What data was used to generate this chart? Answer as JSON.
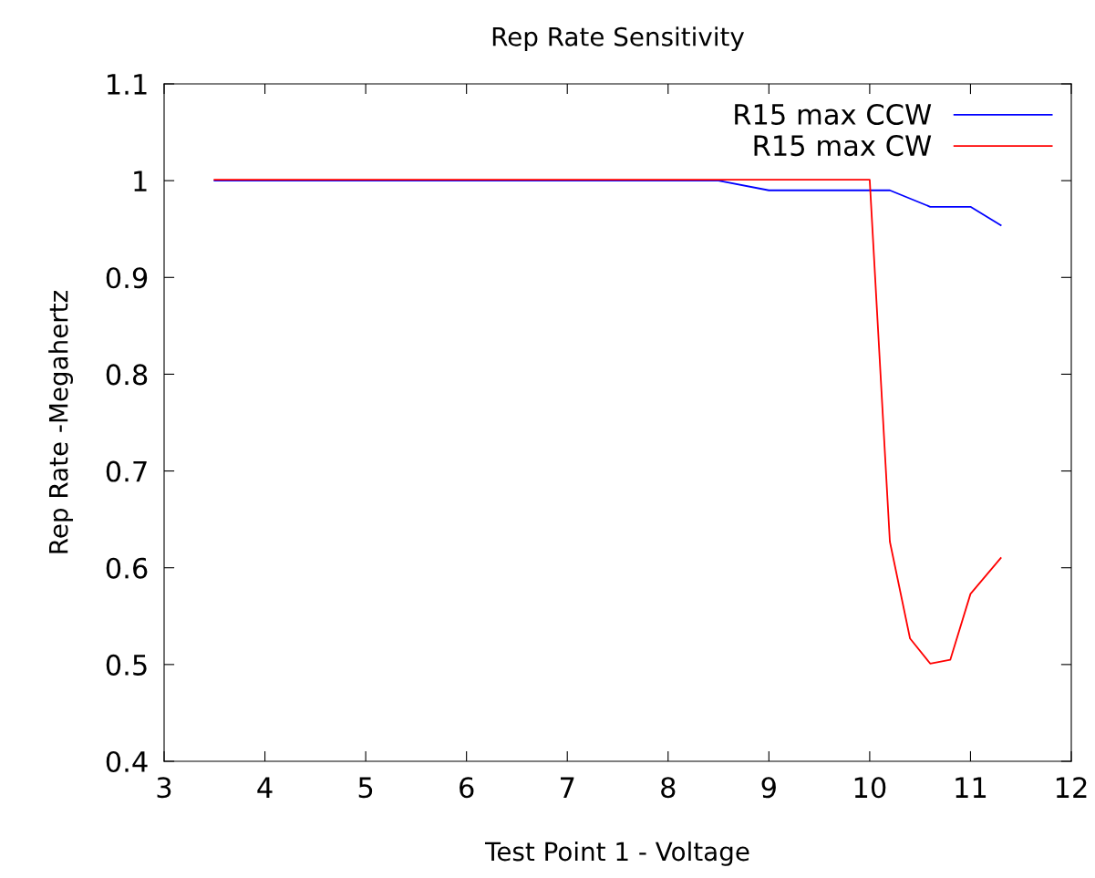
{
  "chart_data": {
    "type": "line",
    "title": "Rep Rate Sensitivity",
    "xlabel": "Test Point 1 - Voltage",
    "ylabel": "Rep Rate -Megahertz",
    "xlim": [
      3,
      12
    ],
    "xticks": [
      3,
      4,
      5,
      6,
      7,
      8,
      9,
      10,
      11,
      12
    ],
    "ylim": [
      0.4,
      1.1
    ],
    "yticks": [
      0.4,
      0.5,
      0.6,
      0.7,
      0.8,
      0.9,
      1,
      1.1
    ],
    "grid": false,
    "legend": "top right",
    "marker": "none",
    "line_style": "solid",
    "series": [
      {
        "name": "R15 max CCW",
        "color": "#0000ff",
        "x": [
          3.5,
          8.5,
          9.0,
          10.2,
          10.6,
          11.0,
          11.3
        ],
        "values": [
          1.0,
          1.0,
          0.99,
          0.99,
          0.973,
          0.973,
          0.954
        ]
      },
      {
        "name": "R15 max CW",
        "color": "#ff0000",
        "x": [
          3.5,
          10.0,
          10.2,
          10.4,
          10.6,
          10.8,
          11.0,
          11.3
        ],
        "values": [
          1.001,
          1.001,
          0.627,
          0.527,
          0.501,
          0.505,
          0.573,
          0.61
        ]
      }
    ]
  }
}
